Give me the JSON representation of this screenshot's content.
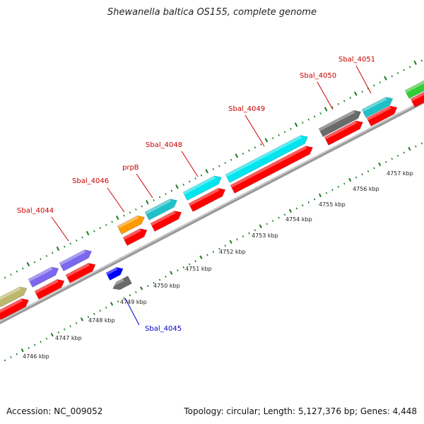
{
  "title": "Shewanella baltica OS155, complete genome",
  "footer": {
    "accession": "Accession: NC_009052",
    "summary": "Topology: circular; Length: 5,127,376 bp; Genes: 4,448"
  },
  "colors": {
    "label_red": "#cc0000",
    "label_blue": "#0000cc",
    "tick_green": "#1a7a1a",
    "cds_red": "#ff0000",
    "gene_cyan": "#00e5ee",
    "gene_teal": "#20c0c8",
    "gene_grey": "#6a6a6a",
    "gene_orange": "#ff9900",
    "gene_purple": "#7b68ee",
    "gene_olive": "#bdb76b",
    "gene_green": "#33cc33",
    "gene_blue": "#0000ff",
    "backbone": "#999999"
  },
  "scale_ticks": [
    {
      "label": "4746 kbp"
    },
    {
      "label": "4747 kbp"
    },
    {
      "label": "4748 kbp"
    },
    {
      "label": "4749 kbp"
    },
    {
      "label": "4750 kbp"
    },
    {
      "label": "4751 kbp"
    },
    {
      "label": "4752 kbp"
    },
    {
      "label": "4753 kbp"
    },
    {
      "label": "4754 kbp"
    },
    {
      "label": "4755 kbp"
    },
    {
      "label": "4756 kbp"
    },
    {
      "label": "4757 kbp"
    }
  ],
  "gene_labels": [
    {
      "name": "Sbal_4044",
      "color": "#cc0000"
    },
    {
      "name": "Sbal_4046",
      "color": "#cc0000"
    },
    {
      "name": "prpB",
      "color": "#cc0000"
    },
    {
      "name": "Sbal_4048",
      "color": "#cc0000"
    },
    {
      "name": "Sbal_4049",
      "color": "#cc0000"
    },
    {
      "name": "Sbal_4050",
      "color": "#cc0000"
    },
    {
      "name": "Sbal_4051",
      "color": "#cc0000"
    },
    {
      "name": "Sbal_4045",
      "color": "#0000cc"
    }
  ]
}
